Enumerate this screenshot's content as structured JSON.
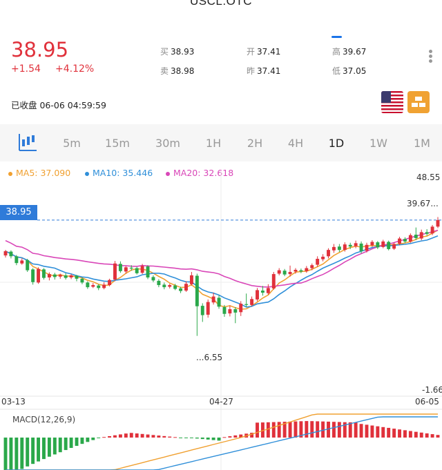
{
  "header": {
    "symbol": "USCL.OTC"
  },
  "quote": {
    "last": "38.95",
    "change": "+1.54",
    "change_pct": "+4.12%",
    "bid_label": "买",
    "bid": "38.93",
    "ask_label": "卖",
    "ask": "38.98",
    "open_label": "开",
    "open": "37.41",
    "prev_label": "昨",
    "prev": "37.41",
    "high_label": "高",
    "high": "39.67",
    "low_label": "低",
    "low": "37.05",
    "status": "已收盘 06-06 04:59:59"
  },
  "icons": {
    "flag": "us-flag-icon",
    "gold": "gold-bars-icon",
    "menu": "more-vertical-icon",
    "kline": "candlestick-icon"
  },
  "tabs": [
    {
      "label": "5m"
    },
    {
      "label": "15m"
    },
    {
      "label": "30m"
    },
    {
      "label": "1H"
    },
    {
      "label": "2H"
    },
    {
      "label": "4H"
    },
    {
      "label": "1D",
      "active": true
    },
    {
      "label": "1W"
    },
    {
      "label": "1M"
    }
  ],
  "legend": {
    "ma5": "MA5: 37.090",
    "ma10": "MA10: 35.446",
    "ma20": "MA20: 32.618"
  },
  "colors": {
    "up": "#e0313b",
    "down": "#2aa84a",
    "ma5": "#f0a030",
    "ma10": "#2f8fd9",
    "ma20": "#d946b8",
    "price_tag": "#2f7bd9"
  },
  "axis": {
    "y_top": "48.55",
    "y_bottom": "-1.66",
    "current_price": "38.95",
    "high_mark": "39.67...",
    "low_mark": "...6.55",
    "dates": [
      "03-13",
      "04-27",
      "06-05"
    ]
  },
  "macd": {
    "label": "MACD(12,26,9)"
  },
  "chart_data": {
    "type": "candlestick",
    "ylim": [
      -1.66,
      48.55
    ],
    "candles": [
      {
        "o": 30.6,
        "c": 31.6,
        "h": 31.9,
        "l": 30.1
      },
      {
        "o": 31.5,
        "c": 30.4,
        "h": 31.8,
        "l": 29.9
      },
      {
        "o": 30.4,
        "c": 28.8,
        "h": 30.7,
        "l": 28.3
      },
      {
        "o": 28.7,
        "c": 29.4,
        "h": 29.9,
        "l": 28.4
      },
      {
        "o": 29.5,
        "c": 27.1,
        "h": 29.8,
        "l": 26.7
      },
      {
        "o": 27.3,
        "c": 24.3,
        "h": 27.6,
        "l": 23.7
      },
      {
        "o": 24.2,
        "c": 27.4,
        "h": 27.8,
        "l": 23.9
      },
      {
        "o": 27.3,
        "c": 25.3,
        "h": 27.6,
        "l": 24.9
      },
      {
        "o": 25.4,
        "c": 26.2,
        "h": 26.6,
        "l": 24.7
      },
      {
        "o": 26.1,
        "c": 25.5,
        "h": 26.5,
        "l": 24.9
      },
      {
        "o": 25.6,
        "c": 26.0,
        "h": 26.3,
        "l": 25.1
      },
      {
        "o": 25.9,
        "c": 25.3,
        "h": 26.4,
        "l": 24.9
      },
      {
        "o": 25.4,
        "c": 25.9,
        "h": 26.2,
        "l": 25.0
      },
      {
        "o": 25.8,
        "c": 25.1,
        "h": 26.0,
        "l": 24.5
      },
      {
        "o": 25.1,
        "c": 24.2,
        "h": 25.4,
        "l": 23.8
      },
      {
        "o": 24.2,
        "c": 23.1,
        "h": 24.5,
        "l": 22.7
      },
      {
        "o": 23.2,
        "c": 23.6,
        "h": 24.1,
        "l": 22.9
      },
      {
        "o": 23.5,
        "c": 22.9,
        "h": 23.8,
        "l": 22.4
      },
      {
        "o": 22.9,
        "c": 23.7,
        "h": 24.3,
        "l": 22.6
      },
      {
        "o": 23.6,
        "c": 24.8,
        "h": 25.1,
        "l": 23.3
      },
      {
        "o": 24.9,
        "c": 28.7,
        "h": 29.3,
        "l": 24.5
      },
      {
        "o": 28.6,
        "c": 26.9,
        "h": 29.2,
        "l": 26.5
      },
      {
        "o": 26.8,
        "c": 27.8,
        "h": 28.1,
        "l": 26.3
      },
      {
        "o": 27.7,
        "c": 27.5,
        "h": 28.3,
        "l": 27.0
      },
      {
        "o": 27.6,
        "c": 26.4,
        "h": 27.9,
        "l": 26.1
      },
      {
        "o": 26.5,
        "c": 28.1,
        "h": 28.6,
        "l": 26.2
      },
      {
        "o": 28.0,
        "c": 25.4,
        "h": 28.3,
        "l": 25.0
      },
      {
        "o": 25.5,
        "c": 24.7,
        "h": 25.9,
        "l": 24.3
      },
      {
        "o": 24.6,
        "c": 23.6,
        "h": 25.0,
        "l": 23.1
      },
      {
        "o": 23.7,
        "c": 23.1,
        "h": 24.2,
        "l": 22.6
      },
      {
        "o": 23.2,
        "c": 23.6,
        "h": 23.9,
        "l": 22.8
      },
      {
        "o": 23.5,
        "c": 22.7,
        "h": 23.9,
        "l": 22.4
      },
      {
        "o": 22.8,
        "c": 22.2,
        "h": 23.2,
        "l": 21.7
      },
      {
        "o": 22.3,
        "c": 23.9,
        "h": 24.5,
        "l": 22.0
      },
      {
        "o": 23.8,
        "c": 25.9,
        "h": 26.7,
        "l": 23.5
      },
      {
        "o": 25.8,
        "c": 18.6,
        "h": 26.3,
        "l": 11.6
      },
      {
        "o": 18.7,
        "c": 16.5,
        "h": 19.3,
        "l": 14.9
      },
      {
        "o": 16.6,
        "c": 19.6,
        "h": 20.2,
        "l": 15.9
      },
      {
        "o": 19.5,
        "c": 20.9,
        "h": 21.8,
        "l": 19.0
      },
      {
        "o": 20.6,
        "c": 18.5,
        "h": 21.2,
        "l": 18.0
      },
      {
        "o": 18.4,
        "c": 16.8,
        "h": 18.9,
        "l": 16.1
      },
      {
        "o": 16.9,
        "c": 17.9,
        "h": 18.8,
        "l": 16.2
      },
      {
        "o": 17.9,
        "c": 17.1,
        "h": 18.4,
        "l": 14.6
      },
      {
        "o": 17.2,
        "c": 19.2,
        "h": 19.8,
        "l": 16.3
      },
      {
        "o": 19.1,
        "c": 18.9,
        "h": 21.6,
        "l": 18.4
      },
      {
        "o": 18.9,
        "c": 20.3,
        "h": 20.9,
        "l": 18.6
      },
      {
        "o": 20.2,
        "c": 22.4,
        "h": 22.9,
        "l": 19.8
      },
      {
        "o": 22.3,
        "c": 21.8,
        "h": 23.4,
        "l": 21.1
      },
      {
        "o": 21.7,
        "c": 22.9,
        "h": 23.8,
        "l": 21.3
      },
      {
        "o": 22.8,
        "c": 26.2,
        "h": 26.7,
        "l": 22.5
      },
      {
        "o": 26.3,
        "c": 27.1,
        "h": 27.6,
        "l": 25.9
      },
      {
        "o": 27.0,
        "c": 26.1,
        "h": 27.4,
        "l": 25.7
      },
      {
        "o": 26.2,
        "c": 26.7,
        "h": 28.2,
        "l": 25.6
      },
      {
        "o": 26.8,
        "c": 27.2,
        "h": 27.6,
        "l": 26.3
      },
      {
        "o": 27.1,
        "c": 26.8,
        "h": 27.5,
        "l": 26.4
      },
      {
        "o": 26.9,
        "c": 27.6,
        "h": 28.1,
        "l": 26.5
      },
      {
        "o": 27.6,
        "c": 28.3,
        "h": 28.7,
        "l": 27.1
      },
      {
        "o": 28.4,
        "c": 29.8,
        "h": 30.4,
        "l": 27.9
      },
      {
        "o": 29.7,
        "c": 30.3,
        "h": 30.9,
        "l": 29.2
      },
      {
        "o": 30.4,
        "c": 31.9,
        "h": 32.3,
        "l": 29.9
      },
      {
        "o": 31.8,
        "c": 32.6,
        "h": 33.3,
        "l": 31.2
      },
      {
        "o": 32.7,
        "c": 31.9,
        "h": 33.3,
        "l": 31.4
      },
      {
        "o": 31.9,
        "c": 33.2,
        "h": 33.7,
        "l": 31.5
      },
      {
        "o": 33.1,
        "c": 32.7,
        "h": 33.6,
        "l": 32.1
      },
      {
        "o": 32.8,
        "c": 33.5,
        "h": 34.1,
        "l": 32.3
      },
      {
        "o": 33.4,
        "c": 31.6,
        "h": 33.9,
        "l": 31.1
      },
      {
        "o": 31.7,
        "c": 33.1,
        "h": 33.6,
        "l": 31.3
      },
      {
        "o": 33.0,
        "c": 33.8,
        "h": 34.2,
        "l": 32.6
      },
      {
        "o": 33.7,
        "c": 32.5,
        "h": 34.0,
        "l": 32.1
      },
      {
        "o": 32.6,
        "c": 33.9,
        "h": 34.3,
        "l": 32.3
      },
      {
        "o": 33.8,
        "c": 32.1,
        "h": 34.1,
        "l": 31.8
      },
      {
        "o": 32.2,
        "c": 33.3,
        "h": 33.7,
        "l": 31.9
      },
      {
        "o": 33.4,
        "c": 34.6,
        "h": 35.0,
        "l": 33.0
      },
      {
        "o": 34.5,
        "c": 33.9,
        "h": 34.9,
        "l": 33.5
      },
      {
        "o": 33.9,
        "c": 35.4,
        "h": 35.8,
        "l": 33.6
      },
      {
        "o": 35.5,
        "c": 34.7,
        "h": 37.2,
        "l": 34.2
      },
      {
        "o": 34.6,
        "c": 36.1,
        "h": 36.7,
        "l": 34.2
      },
      {
        "o": 36.1,
        "c": 35.7,
        "h": 36.8,
        "l": 35.3
      },
      {
        "o": 35.8,
        "c": 37.4,
        "h": 37.8,
        "l": 35.4
      },
      {
        "o": 37.41,
        "c": 38.95,
        "h": 39.67,
        "l": 37.05
      }
    ],
    "ma5_last": 37.09,
    "ma10_last": 35.446,
    "ma20_last": 32.618
  }
}
